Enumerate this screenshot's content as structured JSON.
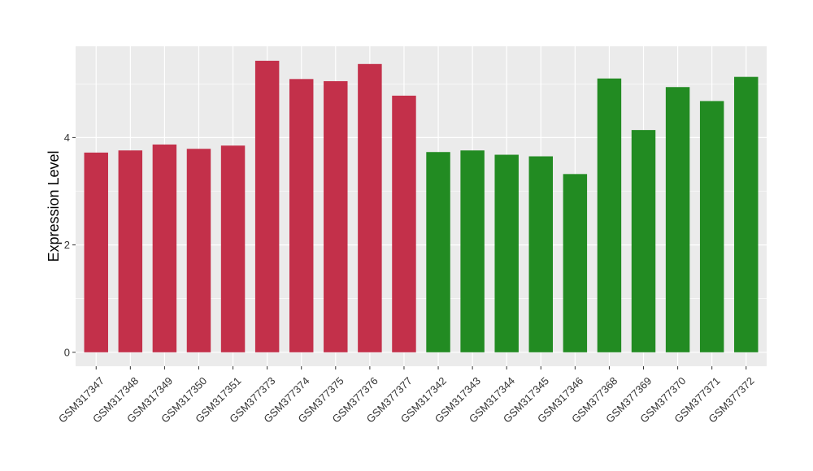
{
  "chart_data": {
    "type": "bar",
    "title": "",
    "xlabel": "",
    "ylabel": "Expression Level",
    "ylim": [
      -0.26,
      5.7
    ],
    "yticks": [
      0,
      2,
      4
    ],
    "grid": true,
    "legend": "none",
    "categories": [
      "GSM317347",
      "GSM317348",
      "GSM317349",
      "GSM317350",
      "GSM317351",
      "GSM377373",
      "GSM377374",
      "GSM377375",
      "GSM377376",
      "GSM377377",
      "GSM317342",
      "GSM317343",
      "GSM317344",
      "GSM317345",
      "GSM317346",
      "GSM377368",
      "GSM377369",
      "GSM377370",
      "GSM377371",
      "GSM377372"
    ],
    "values": [
      3.72,
      3.76,
      3.87,
      3.79,
      3.85,
      5.43,
      5.09,
      5.05,
      5.37,
      4.78,
      3.73,
      3.76,
      3.68,
      3.65,
      3.32,
      5.1,
      4.14,
      4.94,
      4.68,
      5.13
    ],
    "bar_colors": [
      "#C3304A",
      "#C3304A",
      "#C3304A",
      "#C3304A",
      "#C3304A",
      "#C3304A",
      "#C3304A",
      "#C3304A",
      "#C3304A",
      "#C3304A",
      "#228B22",
      "#228B22",
      "#228B22",
      "#228B22",
      "#228B22",
      "#228B22",
      "#228B22",
      "#228B22",
      "#228B22",
      "#228B22"
    ],
    "panel_background": "#EBEBEB",
    "grid_color": "#FFFFFF"
  }
}
